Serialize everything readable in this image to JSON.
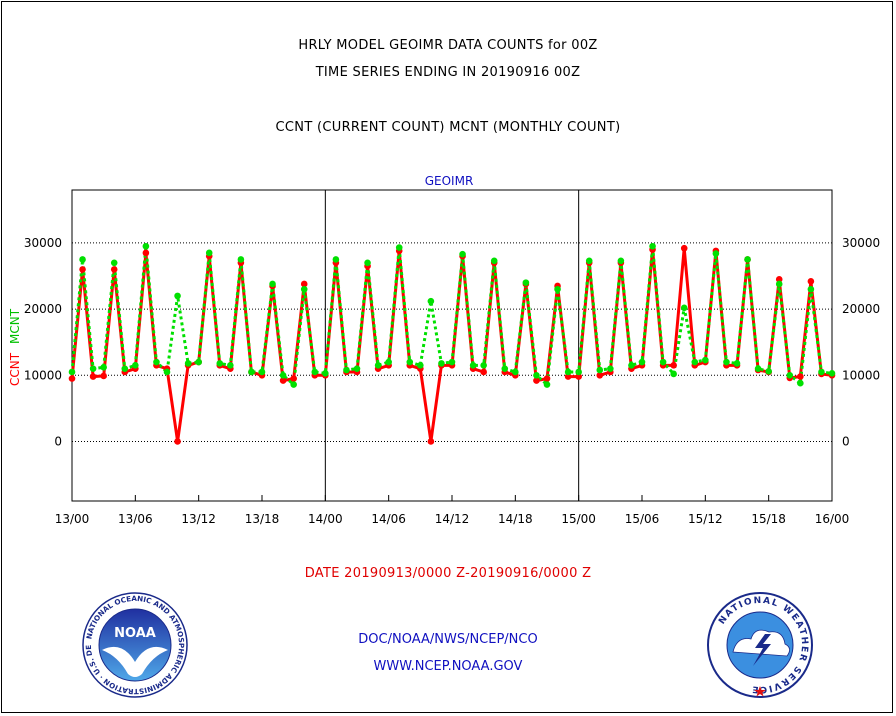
{
  "header": {
    "line1": "HRLY MODEL GEOIMR DATA COUNTS for 00Z",
    "line2": "TIME SERIES ENDING IN 20190916 00Z",
    "line3": "CCNT (CURRENT COUNT) MCNT (MONTHLY COUNT)"
  },
  "chart_data": {
    "type": "line",
    "title": "GEOIMR",
    "ylabel_ccnt": "CCNT",
    "ylabel_mcnt": "MCNT",
    "xlabel": "DATE 20190913/0000 Z-20190916/0000 Z",
    "ylim": [
      -9000,
      38000
    ],
    "yticks": [
      0,
      10000,
      20000,
      30000
    ],
    "ytick_labels": [
      "0",
      "10000",
      "20000",
      "30000"
    ],
    "xlim": [
      0,
      72
    ],
    "xticks": [
      0,
      6,
      12,
      18,
      24,
      30,
      36,
      42,
      48,
      54,
      60,
      66,
      72
    ],
    "xtick_labels": [
      "13/00",
      "13/06",
      "13/12",
      "13/18",
      "14/00",
      "14/06",
      "14/12",
      "14/18",
      "15/00",
      "15/06",
      "15/12",
      "15/18",
      "16/00"
    ],
    "grid": "horizontal dotted",
    "day_dividers": [
      24,
      48
    ],
    "series": [
      {
        "name": "CCNT",
        "color": "#ff0000",
        "values": [
          9500,
          26000,
          9800,
          9900,
          26000,
          10500,
          11000,
          28500,
          11500,
          11000,
          0,
          11500,
          12000,
          28000,
          11500,
          11000,
          27000,
          10500,
          10000,
          23500,
          9200,
          9500,
          23800,
          10000,
          10000,
          27000,
          10500,
          10500,
          26500,
          11000,
          11500,
          28800,
          11500,
          11000,
          0,
          11500,
          11500,
          28000,
          11000,
          10500,
          27000,
          10500,
          10000,
          23800,
          9200,
          9500,
          23500,
          9800,
          9800,
          27000,
          10000,
          10500,
          27000,
          11000,
          11500,
          29000,
          11500,
          11500,
          29200,
          11500,
          12000,
          28800,
          11500,
          11500,
          27500,
          10800,
          10500,
          24500,
          9600,
          9800,
          24200,
          10200,
          10000
        ]
      },
      {
        "name": "MCNT",
        "color": "#00e000",
        "values": [
          10500,
          27500,
          11000,
          11200,
          27000,
          11000,
          11500,
          29500,
          12000,
          10500,
          22000,
          11800,
          12000,
          28500,
          11800,
          11500,
          27500,
          10500,
          10500,
          23800,
          10000,
          8600,
          23000,
          10500,
          10300,
          27500,
          10800,
          11000,
          27000,
          11500,
          12000,
          29300,
          12000,
          11500,
          21200,
          11800,
          12000,
          28300,
          11500,
          11500,
          27300,
          11000,
          10500,
          24000,
          10000,
          8600,
          23000,
          10500,
          10500,
          27300,
          10800,
          11000,
          27300,
          11500,
          12000,
          29500,
          12000,
          10200,
          20200,
          12000,
          12300,
          28400,
          12000,
          11800,
          27500,
          11000,
          10600,
          23800,
          10000,
          8800,
          23000,
          10500,
          10300
        ]
      }
    ]
  },
  "footer": {
    "link1": "DOC/NOAA/NWS/NCEP/NCO",
    "link2": "WWW.NCEP.NOAA.GOV",
    "noaa_logo_text": "NOAA",
    "noaa_ring_text": "NATIONAL OCEANIC AND ATMOSPHERIC ADMINISTRATION · U.S. DEPARTMENT OF COMMERCE ·",
    "nws_ring_text": "NATIONAL WEATHER SERVICE"
  }
}
